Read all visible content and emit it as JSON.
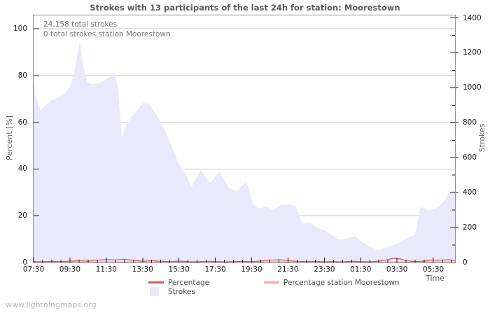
{
  "page": {
    "watermark": "www.lightningmaps.org"
  },
  "chart_data": {
    "type": "area",
    "title": "Strokes with 13 participants of the last 24h for station: Moorestown",
    "annotations": [
      "24,158 total strokes",
      "0 total strokes station Moorestown"
    ],
    "x_axis": {
      "label": "Time",
      "tick_labels": [
        "07:30",
        "09:30",
        "11:30",
        "13:30",
        "15:30",
        "17:30",
        "19:30",
        "21:30",
        "23:30",
        "01:30",
        "03:30",
        "05:30"
      ],
      "tick_hours": [
        7.5,
        9.5,
        11.5,
        13.5,
        15.5,
        17.5,
        19.5,
        21.5,
        23.5,
        25.5,
        27.5,
        29.5
      ],
      "minor_step_hours": 0.5,
      "range_hours": [
        7.5,
        30.69
      ],
      "grid": false
    },
    "y_axis_left": {
      "label": "Percent  [%]",
      "tick_labels": [
        "0",
        "20",
        "40",
        "60",
        "80",
        "100"
      ],
      "ticks": [
        0,
        20,
        40,
        60,
        80,
        100
      ],
      "range": [
        0,
        105.7
      ],
      "grid": true
    },
    "y_axis_right": {
      "label": "Strokes",
      "tick_labels": [
        "0",
        "200",
        "400",
        "600",
        "800",
        "1000",
        "1200",
        "1400"
      ],
      "ticks": [
        0,
        200,
        400,
        600,
        800,
        1000,
        1200,
        1400
      ],
      "minor_step": 100,
      "range": [
        0,
        1413
      ]
    },
    "legend": {
      "position": "bottom-center",
      "entries": [
        {
          "label": "Percentage",
          "swatch": "line",
          "color": "#cd5c5c"
        },
        {
          "label": "Percentage station Moorestown",
          "swatch": "line",
          "color": "#f4aba8"
        },
        {
          "label": "Strokes",
          "swatch": "box",
          "color": "#e9e9fb"
        }
      ]
    },
    "series": [
      {
        "name": "Strokes",
        "type": "area",
        "axis": "right",
        "color": "#e9e9fb",
        "points": [
          [
            7.5,
            1040
          ],
          [
            7.7,
            915
          ],
          [
            7.9,
            870
          ],
          [
            8.2,
            905
          ],
          [
            8.5,
            930
          ],
          [
            8.9,
            945
          ],
          [
            9.2,
            965
          ],
          [
            9.5,
            1005
          ],
          [
            9.7,
            1070
          ],
          [
            9.9,
            1185
          ],
          [
            10.05,
            1270
          ],
          [
            10.25,
            1115
          ],
          [
            10.45,
            1030
          ],
          [
            10.75,
            1020
          ],
          [
            11.05,
            1025
          ],
          [
            11.35,
            1040
          ],
          [
            11.65,
            1060
          ],
          [
            11.95,
            1085
          ],
          [
            12.15,
            1000
          ],
          [
            12.35,
            715
          ],
          [
            12.6,
            790
          ],
          [
            12.9,
            835
          ],
          [
            13.2,
            870
          ],
          [
            13.55,
            915
          ],
          [
            13.85,
            905
          ],
          [
            14.2,
            855
          ],
          [
            14.6,
            785
          ],
          [
            15.0,
            690
          ],
          [
            15.4,
            585
          ],
          [
            15.8,
            515
          ],
          [
            16.2,
            435
          ],
          [
            16.7,
            530
          ],
          [
            17.2,
            455
          ],
          [
            17.75,
            520
          ],
          [
            18.25,
            425
          ],
          [
            18.7,
            408
          ],
          [
            19.2,
            465
          ],
          [
            19.6,
            330
          ],
          [
            19.9,
            310
          ],
          [
            20.3,
            322
          ],
          [
            20.7,
            300
          ],
          [
            21.1,
            330
          ],
          [
            21.5,
            332
          ],
          [
            21.9,
            325
          ],
          [
            22.3,
            222
          ],
          [
            22.7,
            230
          ],
          [
            23.1,
            200
          ],
          [
            23.5,
            185
          ],
          [
            23.9,
            158
          ],
          [
            24.3,
            130
          ],
          [
            24.7,
            135
          ],
          [
            25.2,
            150
          ],
          [
            25.6,
            115
          ],
          [
            26.0,
            92
          ],
          [
            26.5,
            70
          ],
          [
            27.0,
            88
          ],
          [
            27.5,
            108
          ],
          [
            28.0,
            135
          ],
          [
            28.5,
            160
          ],
          [
            28.8,
            320
          ],
          [
            29.2,
            298
          ],
          [
            29.6,
            308
          ],
          [
            30.0,
            340
          ],
          [
            30.3,
            390
          ],
          [
            30.69,
            415
          ]
        ]
      },
      {
        "name": "Percentage",
        "type": "line",
        "axis": "left",
        "color": "#cd5c5c",
        "points": [
          [
            7.5,
            0.4
          ],
          [
            8.0,
            0.3
          ],
          [
            8.5,
            0.5
          ],
          [
            9.0,
            0.4
          ],
          [
            9.5,
            0.6
          ],
          [
            10.0,
            0.8
          ],
          [
            10.5,
            0.6
          ],
          [
            11.0,
            1.0
          ],
          [
            11.5,
            1.3
          ],
          [
            12.0,
            1.1
          ],
          [
            12.5,
            1.4
          ],
          [
            13.0,
            0.9
          ],
          [
            13.5,
            0.6
          ],
          [
            14.0,
            0.8
          ],
          [
            14.5,
            0.5
          ],
          [
            15.0,
            0.4
          ],
          [
            15.5,
            0.6
          ],
          [
            16.0,
            0.4
          ],
          [
            16.5,
            0.3
          ],
          [
            17.0,
            0.5
          ],
          [
            17.5,
            0.4
          ],
          [
            18.0,
            0.3
          ],
          [
            18.5,
            0.4
          ],
          [
            19.0,
            0.5
          ],
          [
            19.5,
            0.4
          ],
          [
            20.0,
            0.6
          ],
          [
            20.5,
            1.0
          ],
          [
            21.0,
            1.2
          ],
          [
            21.5,
            0.8
          ],
          [
            22.0,
            0.5
          ],
          [
            22.5,
            0.4
          ],
          [
            23.0,
            0.5
          ],
          [
            23.5,
            0.3
          ],
          [
            24.0,
            0.4
          ],
          [
            24.5,
            0.3
          ],
          [
            25.0,
            0.5
          ],
          [
            25.5,
            0.4
          ],
          [
            26.0,
            0.3
          ],
          [
            26.5,
            0.6
          ],
          [
            27.0,
            1.2
          ],
          [
            27.3,
            1.8
          ],
          [
            27.7,
            1.5
          ],
          [
            28.0,
            0.8
          ],
          [
            28.5,
            0.4
          ],
          [
            29.0,
            0.6
          ],
          [
            29.3,
            1.0
          ],
          [
            29.7,
            0.9
          ],
          [
            30.0,
            1.1
          ],
          [
            30.4,
            1.2
          ],
          [
            30.69,
            0.8
          ]
        ]
      },
      {
        "name": "Percentage station Moorestown",
        "type": "line",
        "axis": "left",
        "color": "#f4aba8",
        "constant_value": 0
      }
    ],
    "colors": {
      "grid": "#c8c8c8",
      "border": "#8c8c8c",
      "tick": "#1a1a1a",
      "area_fill": "#e9e9fb"
    }
  }
}
